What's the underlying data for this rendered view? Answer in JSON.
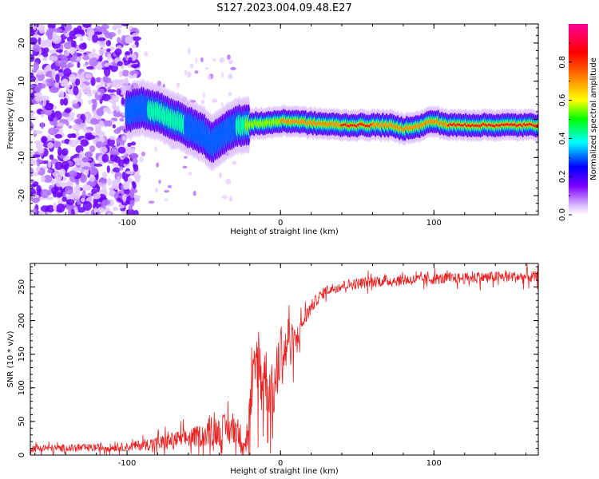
{
  "title": "S127.2023.004.09.48.E27",
  "colors": {
    "snr_line": "#e82020",
    "colormap": [
      "#ffffff",
      "#7f00ff",
      "#0000ff",
      "#00ffff",
      "#00ff00",
      "#ffff00",
      "#ff7f00",
      "#ff0000",
      "#ff00aa"
    ]
  },
  "chart_data": [
    {
      "type": "heatmap",
      "xlabel": "Height of straight line (km)",
      "ylabel": "Frequency (Hz)",
      "xlim": [
        -163,
        168
      ],
      "ylim": [
        -25,
        25
      ],
      "xticks": [
        -100,
        0,
        100
      ],
      "yticks": [
        -20,
        -10,
        0,
        10,
        20
      ],
      "grid": false,
      "dominant_track": {
        "x": [
          -100,
          -90,
          -80,
          -70,
          -60,
          -50,
          -45,
          -40,
          -35,
          -30,
          -25,
          -20,
          -15,
          -10,
          0,
          10,
          20,
          40,
          60,
          70,
          80,
          85,
          90,
          95,
          100,
          105,
          110,
          130,
          168
        ],
        "y": [
          2,
          3,
          2,
          0,
          -2,
          -4,
          -6,
          -5,
          -3,
          -2,
          -1.5,
          -1.5,
          -1,
          -1,
          -0.5,
          -0.5,
          -1,
          -1.5,
          -1.5,
          -1.5,
          -2.5,
          -2,
          -2,
          -1,
          -0.5,
          -1,
          -1.5,
          -1.5,
          -1.5
        ],
        "amplitude": [
          0.4,
          0.4,
          0.45,
          0.5,
          0.4,
          0.35,
          0.3,
          0.3,
          0.35,
          0.4,
          0.5,
          0.6,
          0.7,
          0.6,
          0.7,
          0.8,
          0.7,
          0.85,
          0.85,
          0.8,
          0.85,
          0.75,
          0.8,
          0.7,
          0.85,
          0.8,
          0.85,
          0.85,
          0.85
        ]
      },
      "colorbar": {
        "label": "Normalized spectral amplitude",
        "range": [
          0,
          1
        ],
        "ticks": [
          "0.0",
          "0.2",
          "0.4",
          "0.6",
          "0.8"
        ]
      }
    },
    {
      "type": "line",
      "xlabel": "Height of straight line (km)",
      "ylabel": "SNR (10 * v/v)",
      "xlim": [
        -163,
        168
      ],
      "ylim": [
        0,
        285
      ],
      "xticks": [
        -100,
        0,
        100
      ],
      "yticks": [
        0,
        50,
        100,
        150,
        200,
        250
      ],
      "grid": false,
      "series": [
        {
          "x": [
            -163,
            -140,
            -120,
            -100,
            -90,
            -80,
            -70,
            -60,
            -50,
            -40,
            -35,
            -30,
            -25,
            -22,
            -20,
            -18,
            -15,
            -12,
            -10,
            -8,
            -5,
            -2,
            0,
            3,
            5,
            8,
            10,
            12,
            15,
            20,
            25,
            30,
            40,
            50,
            60,
            80,
            100,
            120,
            140,
            168
          ],
          "y": [
            10,
            10,
            11,
            12,
            15,
            18,
            22,
            25,
            30,
            35,
            38,
            40,
            25,
            20,
            60,
            90,
            150,
            110,
            120,
            100,
            90,
            120,
            160,
            150,
            175,
            165,
            170,
            180,
            200,
            220,
            235,
            245,
            252,
            255,
            258,
            260,
            262,
            263,
            265,
            265
          ],
          "noise": [
            8,
            8,
            8,
            9,
            12,
            15,
            18,
            20,
            25,
            30,
            35,
            40,
            25,
            20,
            60,
            80,
            90,
            80,
            70,
            70,
            60,
            70,
            60,
            60,
            50,
            40,
            30,
            25,
            20,
            15,
            12,
            12,
            12,
            12,
            12,
            12,
            12,
            12,
            12,
            12
          ]
        }
      ]
    }
  ]
}
